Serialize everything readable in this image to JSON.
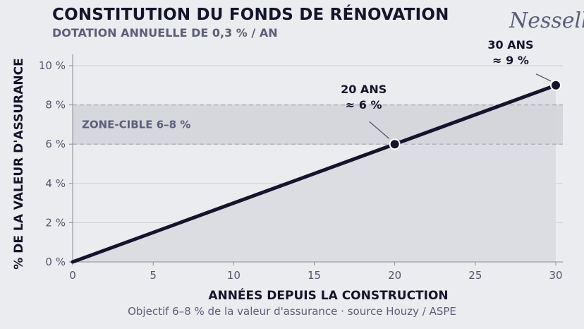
{
  "header": {
    "title": "CONSTITUTION DU FONDS DE RÉNOVATION",
    "subtitle": "DOTATION ANNUELLE DE 0,3 % / AN",
    "logo_text": "Nessell"
  },
  "footer": {
    "caption": "Objectif 6–8 % de la valeur d'assurance · source Houzy / ASPE"
  },
  "chart_data": {
    "type": "line",
    "title": "CONSTITUTION DU FONDS DE RÉNOVATION",
    "subtitle": "DOTATION ANNUELLE DE 0,3 % / AN",
    "xlabel": "ANNÉES DEPUIS LA CONSTRUCTION",
    "ylabel": "% DE LA VALEUR D'ASSURANCE",
    "xlim": [
      0,
      30
    ],
    "ylim": [
      0,
      10
    ],
    "x_ticks": [
      0,
      5,
      10,
      15,
      20,
      25,
      30
    ],
    "x_tick_labels": [
      "0",
      "5",
      "10",
      "15",
      "20",
      "25",
      "30"
    ],
    "y_ticks": [
      0,
      2,
      4,
      6,
      8,
      10
    ],
    "y_tick_labels": [
      "0 %",
      "2 %",
      "4 %",
      "6 %",
      "8 %",
      "10 %"
    ],
    "grid": "horizontal",
    "series": [
      {
        "x": [
          0,
          30
        ],
        "y": [
          0,
          9
        ]
      }
    ],
    "target_zone": {
      "from": 6,
      "to": 8,
      "label": "ZONE-CIBLE  6–8 %"
    },
    "annotations": [
      {
        "x": 20,
        "y": 6,
        "line1": "20 ANS",
        "line2": "≈ 6 %"
      },
      {
        "x": 30,
        "y": 9,
        "line1": "30 ANS",
        "line2": "≈ 9 %"
      }
    ],
    "colors": {
      "line": "#14142b",
      "area": "#dcdde2",
      "zone": "#d3d5da",
      "zone_border": "#a6a8b2",
      "grid": "#cfd0d5",
      "background": "#ebecef"
    }
  }
}
